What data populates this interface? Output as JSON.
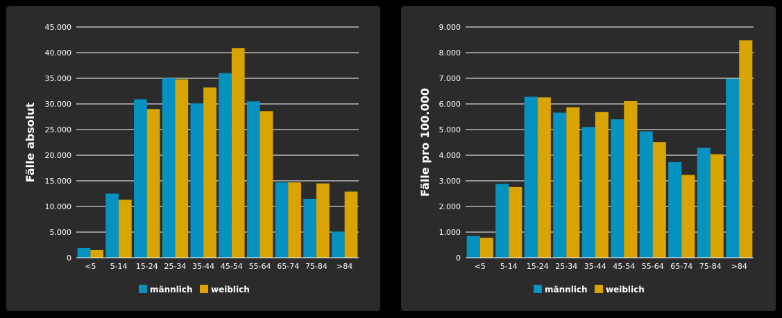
{
  "colors": {
    "maennlich": "#0592c0",
    "weiblich": "#d9a400",
    "panel": "#2b2b2b",
    "grid": "#ffffff"
  },
  "chart_data": [
    {
      "type": "bar",
      "title": "",
      "xlabel": "",
      "ylabel": "Fälle absolut",
      "ylim": [
        0,
        45000
      ],
      "yticks": [
        0,
        5000,
        10000,
        15000,
        20000,
        25000,
        30000,
        35000,
        40000,
        45000
      ],
      "ytick_labels": [
        "0",
        "5.000",
        "10.000",
        "15.000",
        "20.000",
        "25.000",
        "30.000",
        "35.000",
        "40.000",
        "45.000"
      ],
      "categories": [
        "<5",
        "5-14",
        "15-24",
        "25-34",
        "35-44",
        "45-54",
        "55-64",
        "65-74",
        "75-84",
        ">84"
      ],
      "series": [
        {
          "name": "männlich",
          "color": "#0592c0",
          "values": [
            1900,
            12500,
            30900,
            35000,
            30100,
            36000,
            30500,
            14700,
            11500,
            5100
          ]
        },
        {
          "name": "weiblich",
          "color": "#d9a400",
          "values": [
            1500,
            11300,
            29000,
            34800,
            33200,
            40900,
            28600,
            14700,
            14500,
            12900
          ]
        }
      ],
      "legend": "bottom-center",
      "grid": true
    },
    {
      "type": "bar",
      "title": "",
      "xlabel": "",
      "ylabel": "Fälle pro 100.000",
      "ylim": [
        0,
        9000
      ],
      "yticks": [
        0,
        1000,
        2000,
        3000,
        4000,
        5000,
        6000,
        7000,
        8000,
        9000
      ],
      "ytick_labels": [
        "0",
        "1.000",
        "2.000",
        "3.000",
        "4.000",
        "5.000",
        "6.000",
        "7.000",
        "8.000",
        "9.000"
      ],
      "categories": [
        "<5",
        "5-14",
        "15-24",
        "25-34",
        "35-44",
        "45-54",
        "55-64",
        "65-74",
        "75-84",
        ">84"
      ],
      "series": [
        {
          "name": "männlich",
          "color": "#0592c0",
          "values": [
            850,
            2880,
            6280,
            5660,
            5100,
            5400,
            4930,
            3730,
            4290,
            6980
          ]
        },
        {
          "name": "weiblich",
          "color": "#d9a400",
          "values": [
            780,
            2760,
            6260,
            5870,
            5680,
            6110,
            4510,
            3230,
            4040,
            8480
          ]
        }
      ],
      "legend": "bottom-center",
      "grid": true
    }
  ]
}
